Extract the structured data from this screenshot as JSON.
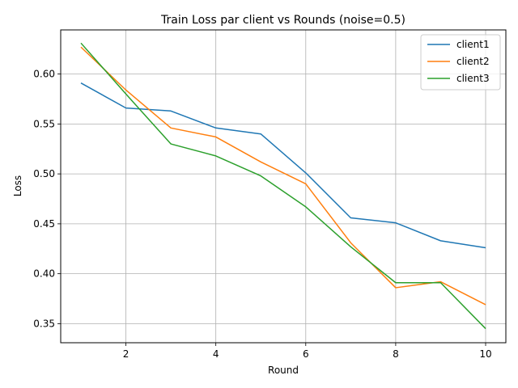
{
  "chart_data": {
    "type": "line",
    "title": "Train Loss par client vs Rounds (noise=0.5)",
    "xlabel": "Round",
    "ylabel": "Loss",
    "xlim": [
      0.55,
      10.45
    ],
    "ylim": [
      0.3309,
      0.6442
    ],
    "xticks": [
      2,
      4,
      6,
      8,
      10
    ],
    "yticks": [
      0.35,
      0.4,
      0.45,
      0.5,
      0.55,
      0.6
    ],
    "grid": true,
    "legend_position": "top-right",
    "x": [
      1,
      2,
      3,
      4,
      5,
      6,
      7,
      8,
      9,
      10
    ],
    "series": [
      {
        "name": "client1",
        "color": "#1f77b4",
        "values": [
          0.591,
          0.566,
          0.563,
          0.546,
          0.54,
          0.501,
          0.456,
          0.451,
          0.433,
          0.426
        ]
      },
      {
        "name": "client2",
        "color": "#ff7f0e",
        "values": [
          0.627,
          0.584,
          0.546,
          0.537,
          0.512,
          0.49,
          0.431,
          0.386,
          0.392,
          0.369
        ]
      },
      {
        "name": "client3",
        "color": "#2ca02c",
        "values": [
          0.631,
          0.58,
          0.53,
          0.518,
          0.498,
          0.467,
          0.427,
          0.391,
          0.391,
          0.345
        ]
      }
    ]
  }
}
